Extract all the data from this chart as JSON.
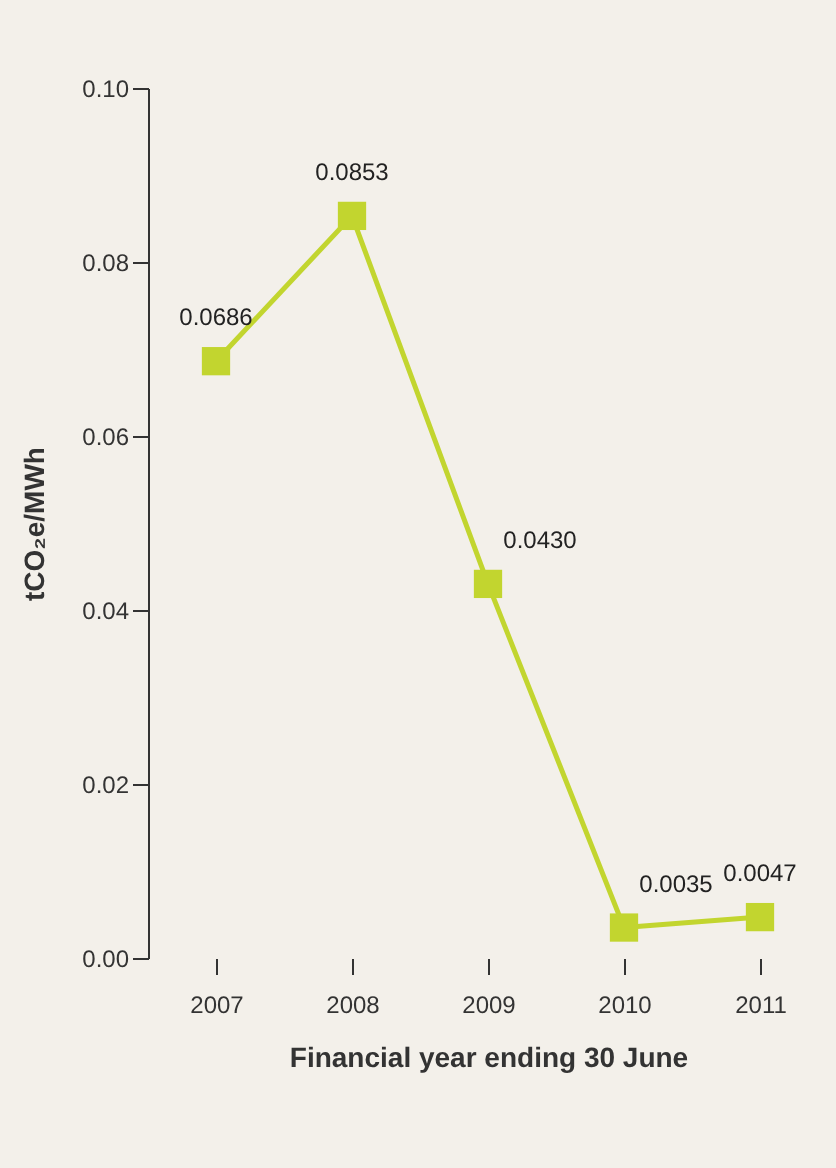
{
  "chart_data": {
    "type": "line",
    "xlabel": "Financial year ending 30 June",
    "ylabel": "tCO₂e/MWh",
    "categories": [
      "2007",
      "2008",
      "2009",
      "2010",
      "2011"
    ],
    "series": [
      {
        "color": "#c2d52f",
        "values": [
          0.0686,
          0.0853,
          0.043,
          0.0035,
          0.0047
        ]
      }
    ],
    "value_labels": [
      "0.0686",
      "0.0853",
      "0.0430",
      "0.0035",
      "0.0047"
    ],
    "ylim": [
      0,
      0.1
    ],
    "yticks": [
      {
        "value": 0,
        "label": "0.00"
      },
      {
        "value": 0.02,
        "label": "0.02"
      },
      {
        "value": 0.04,
        "label": "0.04"
      },
      {
        "value": 0.06,
        "label": "0.06"
      },
      {
        "value": 0.08,
        "label": "0.08"
      },
      {
        "value": 0.1,
        "label": "0.10"
      }
    ],
    "marker": "square",
    "grid": false,
    "legend": false
  }
}
